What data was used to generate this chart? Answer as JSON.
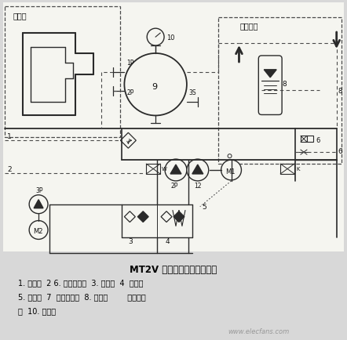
{
  "title": "MT2V 液压和主轴润滑原理图",
  "legend_lines": [
    "1. 制冷器  2 6. 自控溢流阀  3. 主油箱  4  滤油器",
    "5. 单向阀  7  手动截止阀  8. 蓄能器        压差发讯",
    "关  10. 油压表"
  ],
  "bg_color": "#d8d8d8",
  "line_color": "#2a2a2a",
  "dashed_color": "#4a4a4a",
  "text_color": "#111111",
  "label_left_top": "主轴箱",
  "label_right_top": "液压系统",
  "watermark": "www.elecfans.com"
}
